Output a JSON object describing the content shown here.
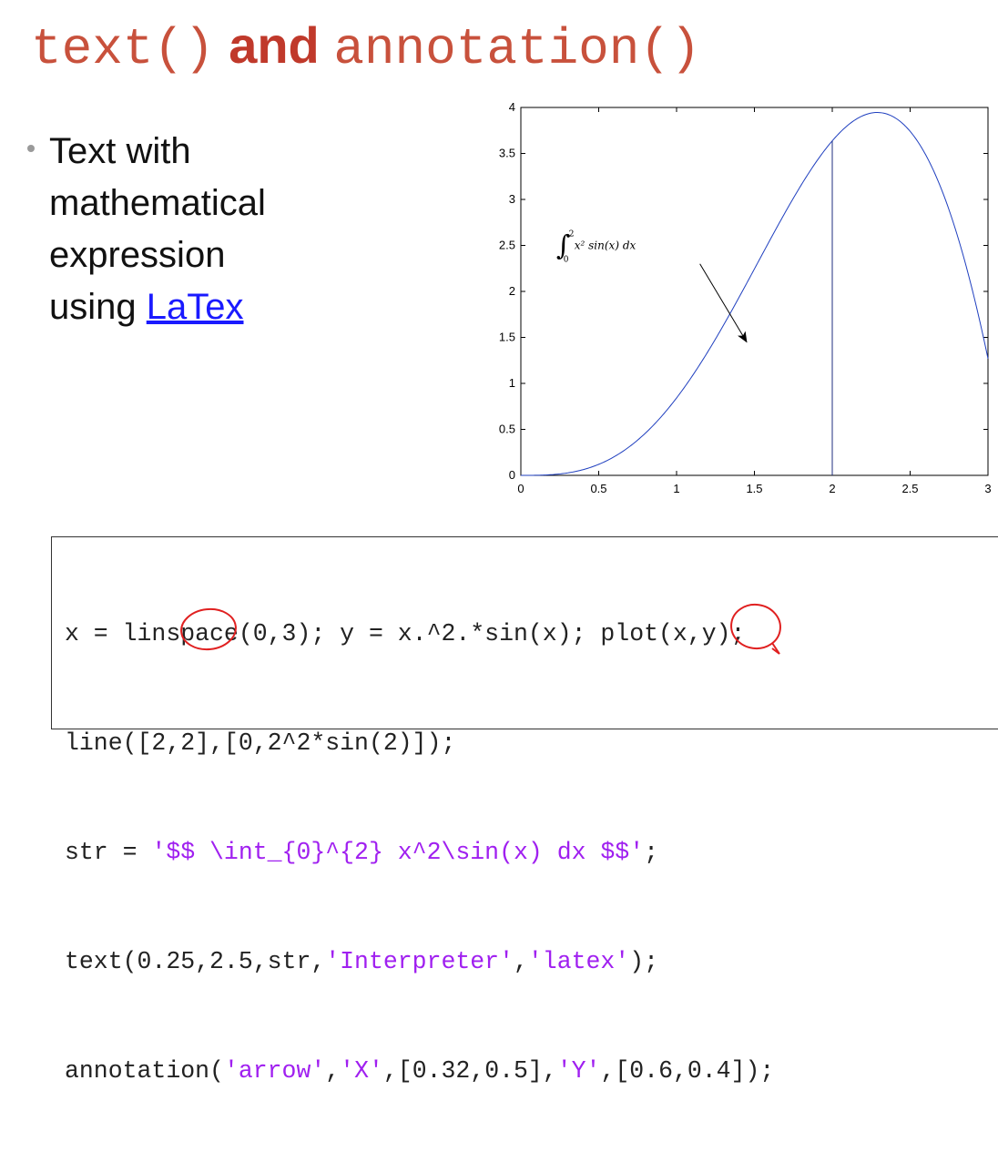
{
  "slide": {
    "title": {
      "part1": "text()",
      "part2": "and",
      "part3": "annotation()"
    },
    "bullet": {
      "line1": "Text with",
      "line2": "mathematical",
      "line3": "expression",
      "line4_prefix": "using ",
      "link": "LaTex"
    }
  },
  "chart_data": {
    "type": "line",
    "x_ticks": [
      "0",
      "0.5",
      "1",
      "1.5",
      "2",
      "2.5",
      "3"
    ],
    "y_ticks": [
      "0",
      "0.5",
      "1",
      "1.5",
      "2",
      "2.5",
      "3",
      "3.5",
      "4"
    ],
    "xlim": [
      0,
      3
    ],
    "ylim": [
      0,
      4
    ],
    "series": [
      {
        "function": "y = x.^2.*sin(x)",
        "x": [
          0,
          0.25,
          0.5,
          0.75,
          1,
          1.25,
          1.5,
          1.75,
          2,
          2.25,
          2.5,
          2.75,
          3
        ],
        "y": [
          0,
          0.015,
          0.12,
          0.38,
          0.84,
          1.48,
          2.24,
          3.01,
          3.64,
          3.94,
          3.74,
          2.89,
          1.27
        ],
        "color": "#1f3fbf"
      }
    ],
    "vertical_line": {
      "x": 2,
      "y": [
        0,
        3.637
      ]
    },
    "annotation_text": {
      "x": 0.25,
      "y": 2.5,
      "latex": "∫₀² x² sin(x) dx",
      "integral": "∫",
      "lower": "0",
      "upper": "2",
      "body": "x² sin(x) dx"
    },
    "arrow": {
      "from": [
        1.15,
        2.3
      ],
      "to": [
        1.45,
        1.45
      ]
    },
    "grid": false
  },
  "code": {
    "line1": "x = linspace(0,3); y = x.^2.*sin(x); plot(x,y);",
    "line2": "line([2,2],[0,2^2*sin(2)]);",
    "line3_pre": "str = ",
    "line3_str": "'$$ \\int_{0}^{2} x^2\\sin(x) dx $$'",
    "line3_post": ";",
    "line4_pre": "text(0.25,2.5,str,",
    "line4_s1": "'Interpreter'",
    "line4_mid": ",",
    "line4_s2": "'latex'",
    "line4_post": ");",
    "line5_pre": "annotation(",
    "line5_s1": "'arrow'",
    "line5_a": ",",
    "line5_s2": "'X'",
    "line5_b": ",[0.32,0.5],",
    "line5_s3": "'Y'",
    "line5_c": ",[0.6,0.4]);"
  },
  "colors": {
    "title": "#c0392b",
    "link": "#1a1aff",
    "code_string": "#a020f0",
    "plot_line": "#1f3fbf",
    "markup": "#e02020"
  }
}
